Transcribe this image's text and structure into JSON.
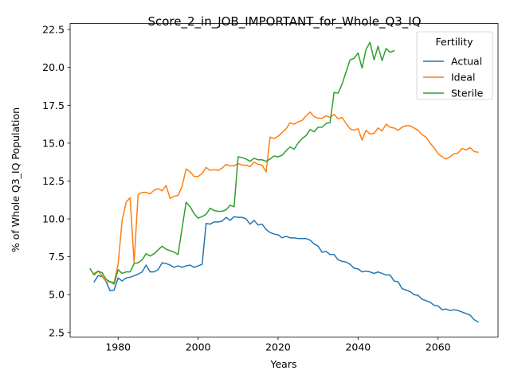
{
  "chart_data": {
    "type": "line",
    "title": "Score_2_in_JOB_IMPORTANT_for_Whole_Q3_IQ",
    "xlabel": "Years",
    "ylabel": "% of Whole Q3_IQ Population",
    "xlim": [
      1968,
      2075
    ],
    "ylim": [
      2.2,
      22.9
    ],
    "xticks": [
      1980,
      2000,
      2020,
      2040,
      2060
    ],
    "yticks": [
      2.5,
      5.0,
      7.5,
      10.0,
      12.5,
      15.0,
      17.5,
      20.0,
      22.5
    ],
    "xtick_labels": [
      "1980",
      "2000",
      "2020",
      "2040",
      "2060"
    ],
    "ytick_labels": [
      "2.5",
      "5.0",
      "7.5",
      "10.0",
      "12.5",
      "15.0",
      "17.5",
      "20.0",
      "22.5"
    ],
    "grid": false,
    "legend": {
      "title": "Fertility",
      "placement": "top-right"
    },
    "series": [
      {
        "name": "Actual",
        "color": "#1f77b4",
        "x": [
          1974,
          1975,
          1976,
          1977,
          1978,
          1979,
          1980,
          1981,
          1982,
          1983,
          1984,
          1985,
          1986,
          1987,
          1988,
          1989,
          1990,
          1991,
          1992,
          1993,
          1994,
          1995,
          1996,
          1997,
          1998,
          1999,
          2000,
          2001,
          2002,
          2003,
          2004,
          2005,
          2006,
          2007,
          2008,
          2009,
          2010,
          2011,
          2012,
          2013,
          2014,
          2015,
          2016,
          2017,
          2018,
          2019,
          2020,
          2021,
          2022,
          2023,
          2024,
          2025,
          2026,
          2027,
          2028,
          2029,
          2030,
          2031,
          2032,
          2033,
          2034,
          2035,
          2036,
          2037,
          2038,
          2039,
          2040,
          2041,
          2042,
          2043,
          2044,
          2045,
          2046,
          2047,
          2048,
          2049,
          2050,
          2051,
          2052,
          2053,
          2054,
          2055,
          2056,
          2057,
          2058,
          2059,
          2060,
          2061,
          2062,
          2063,
          2064,
          2065,
          2066,
          2067,
          2068,
          2069,
          2070
        ],
        "y": [
          5.85,
          6.25,
          6.2,
          5.85,
          5.25,
          5.3,
          6.1,
          5.9,
          6.1,
          6.15,
          6.25,
          6.35,
          6.5,
          6.95,
          6.5,
          6.5,
          6.65,
          7.1,
          7.05,
          6.95,
          6.8,
          6.9,
          6.8,
          6.9,
          6.95,
          6.8,
          6.9,
          7.0,
          9.7,
          9.65,
          9.8,
          9.8,
          9.85,
          10.1,
          9.9,
          10.15,
          10.1,
          10.1,
          10.0,
          9.65,
          9.9,
          9.6,
          9.65,
          9.3,
          9.1,
          9.0,
          8.95,
          8.75,
          8.85,
          8.75,
          8.75,
          8.7,
          8.7,
          8.7,
          8.6,
          8.35,
          8.2,
          7.8,
          7.85,
          7.65,
          7.65,
          7.3,
          7.2,
          7.15,
          7.0,
          6.75,
          6.7,
          6.5,
          6.55,
          6.5,
          6.4,
          6.5,
          6.4,
          6.3,
          6.3,
          5.9,
          5.85,
          5.4,
          5.3,
          5.2,
          5.0,
          4.95,
          4.7,
          4.6,
          4.5,
          4.3,
          4.25,
          4.0,
          4.05,
          3.95,
          4.0,
          3.95,
          3.85,
          3.75,
          3.65,
          3.35,
          3.2
        ]
      },
      {
        "name": "Ideal",
        "color": "#ff7f0e",
        "x": [
          1974,
          1975,
          1976,
          1977,
          1978,
          1979,
          1980,
          1981,
          1982,
          1983,
          1984,
          1985,
          1986,
          1987,
          1988,
          1989,
          1990,
          1991,
          1992,
          1993,
          1994,
          1995,
          1996,
          1997,
          1998,
          1999,
          2000,
          2001,
          2002,
          2003,
          2004,
          2005,
          2006,
          2007,
          2008,
          2009,
          2010,
          2011,
          2012,
          2013,
          2014,
          2015,
          2016,
          2017,
          2018,
          2019,
          2020,
          2021,
          2022,
          2023,
          2024,
          2025,
          2026,
          2027,
          2028,
          2029,
          2030,
          2031,
          2032,
          2033,
          2034,
          2035,
          2036,
          2037,
          2038,
          2039,
          2040,
          2041,
          2042,
          2043,
          2044,
          2045,
          2046,
          2047,
          2048,
          2049,
          2050,
          2051,
          2052,
          2053,
          2054,
          2055,
          2056,
          2057,
          2058,
          2059,
          2060,
          2061,
          2062,
          2063,
          2064,
          2065,
          2066,
          2067,
          2068,
          2069,
          2070
        ],
        "y": [
          6.4,
          6.55,
          6.25,
          5.85,
          5.85,
          5.8,
          7.0,
          9.9,
          11.1,
          11.4,
          7.1,
          11.6,
          11.75,
          11.75,
          11.65,
          11.9,
          12.0,
          11.85,
          12.2,
          11.35,
          11.5,
          11.55,
          12.15,
          13.3,
          13.1,
          12.8,
          12.8,
          13.0,
          13.4,
          13.2,
          13.25,
          13.2,
          13.35,
          13.6,
          13.5,
          13.5,
          13.65,
          13.55,
          13.55,
          13.45,
          13.75,
          13.6,
          13.55,
          13.1,
          15.4,
          15.3,
          15.45,
          15.7,
          15.95,
          16.35,
          16.25,
          16.4,
          16.5,
          16.8,
          17.05,
          16.75,
          16.65,
          16.65,
          16.8,
          16.7,
          16.9,
          16.6,
          16.7,
          16.3,
          15.95,
          15.85,
          15.95,
          15.2,
          15.85,
          15.6,
          15.65,
          16.0,
          15.8,
          16.25,
          16.05,
          16.0,
          15.85,
          16.05,
          16.15,
          16.15,
          16.0,
          15.85,
          15.55,
          15.4,
          15.0,
          14.7,
          14.3,
          14.1,
          13.95,
          14.1,
          14.3,
          14.35,
          14.65,
          14.55,
          14.7,
          14.45,
          14.4
        ]
      },
      {
        "name": "Sterile",
        "color": "#2ca02c",
        "x": [
          1973,
          1974,
          1975,
          1976,
          1977,
          1978,
          1979,
          1980,
          1981,
          1982,
          1983,
          1984,
          1985,
          1986,
          1987,
          1988,
          1989,
          1990,
          1991,
          1992,
          1993,
          1994,
          1995,
          1996,
          1997,
          1998,
          1999,
          2000,
          2001,
          2002,
          2003,
          2004,
          2005,
          2006,
          2007,
          2008,
          2009,
          2010,
          2011,
          2012,
          2013,
          2014,
          2015,
          2016,
          2017,
          2018,
          2019,
          2020,
          2021,
          2022,
          2023,
          2024,
          2025,
          2026,
          2027,
          2028,
          2029,
          2030,
          2031,
          2032,
          2033,
          2034,
          2035,
          2036,
          2037,
          2038,
          2039,
          2040,
          2041,
          2042,
          2043,
          2044,
          2045,
          2046,
          2047,
          2048,
          2049
        ],
        "y": [
          6.7,
          6.3,
          6.55,
          6.45,
          6.0,
          5.85,
          5.7,
          6.65,
          6.4,
          6.5,
          6.5,
          7.05,
          7.1,
          7.3,
          7.7,
          7.55,
          7.7,
          7.95,
          8.2,
          8.0,
          7.9,
          7.8,
          7.65,
          9.4,
          11.1,
          10.8,
          10.35,
          10.05,
          10.15,
          10.3,
          10.7,
          10.55,
          10.5,
          10.5,
          10.6,
          10.9,
          10.8,
          14.1,
          14.05,
          13.95,
          13.8,
          14.0,
          13.9,
          13.9,
          13.8,
          13.95,
          14.15,
          14.1,
          14.2,
          14.5,
          14.75,
          14.6,
          15.0,
          15.3,
          15.5,
          15.9,
          15.75,
          16.05,
          16.05,
          16.3,
          16.35,
          18.35,
          18.3,
          18.9,
          19.7,
          20.5,
          20.6,
          20.95,
          19.95,
          21.2,
          21.65,
          20.5,
          21.4,
          20.45,
          21.25,
          21.0,
          21.1
        ]
      }
    ]
  }
}
